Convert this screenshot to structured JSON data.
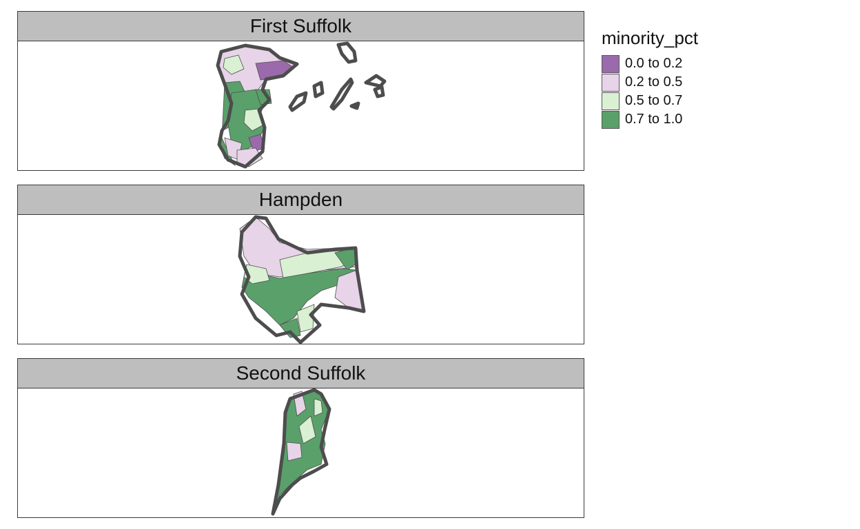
{
  "panels": [
    {
      "title": "First Suffolk"
    },
    {
      "title": "Hampden"
    },
    {
      "title": "Second Suffolk"
    }
  ],
  "legend": {
    "title": "minority_pct",
    "items": [
      {
        "label": "0.0 to 0.2",
        "color": "#9b6aac"
      },
      {
        "label": "0.2 to 0.5",
        "color": "#e7d4e8"
      },
      {
        "label": "0.5 to 0.7",
        "color": "#d9f0d3"
      },
      {
        "label": "0.7 to 1.0",
        "color": "#5aa06a"
      }
    ]
  }
}
